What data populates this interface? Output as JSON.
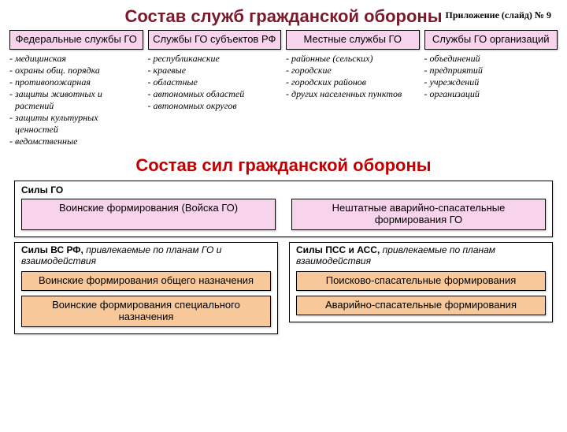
{
  "annex": "Приложение (слайд) № 9",
  "title1": "Состав служб гражданской обороны",
  "title2": "Состав сил гражданской обороны",
  "columns": [
    {
      "header": "Федеральные службы ГО",
      "items": [
        "- медицинская",
        "- охраны общ. порядка",
        "- противопожарная",
        "- защиты животных и растений",
        "- защиты культурных ценностей",
        "- ведомственные"
      ]
    },
    {
      "header": "Службы ГО субъектов РФ",
      "items": [
        "- республиканские",
        "- краевые",
        "- областные",
        "- автономных областей",
        "- автономных округов"
      ]
    },
    {
      "header": "Местные службы ГО",
      "items": [
        "- районные (сельских)",
        "- городские",
        "- городских районов",
        "- других населенных пунктов"
      ]
    },
    {
      "header": "Службы ГО организаций",
      "items": [
        "- объединений",
        "- предприятий",
        "- учреждений",
        "- организаций"
      ]
    }
  ],
  "forces": {
    "top": {
      "label_b": "Силы ГО",
      "label_i": "",
      "boxes": [
        "Воинские формирования (Войска ГО)",
        "Нештатные аварийно-спасательные формирования ГО"
      ],
      "bg": "#f8d4ec"
    },
    "left": {
      "label_b": "Силы ВС РФ,",
      "label_i": " привлекаемые по планам ГО и взаимодействия",
      "boxes": [
        "Воинские формирования общего назначения",
        "Воинские формирования специального назначения"
      ],
      "bg": "#f7c99a"
    },
    "right": {
      "label_b": "Силы ПСС и АСС,",
      "label_i": " привлекаемые по планам взаимодействия",
      "boxes": [
        "Поисково-спасательные формирования",
        "Аварийно-спасательные формирования"
      ],
      "bg": "#f7c99a"
    }
  }
}
